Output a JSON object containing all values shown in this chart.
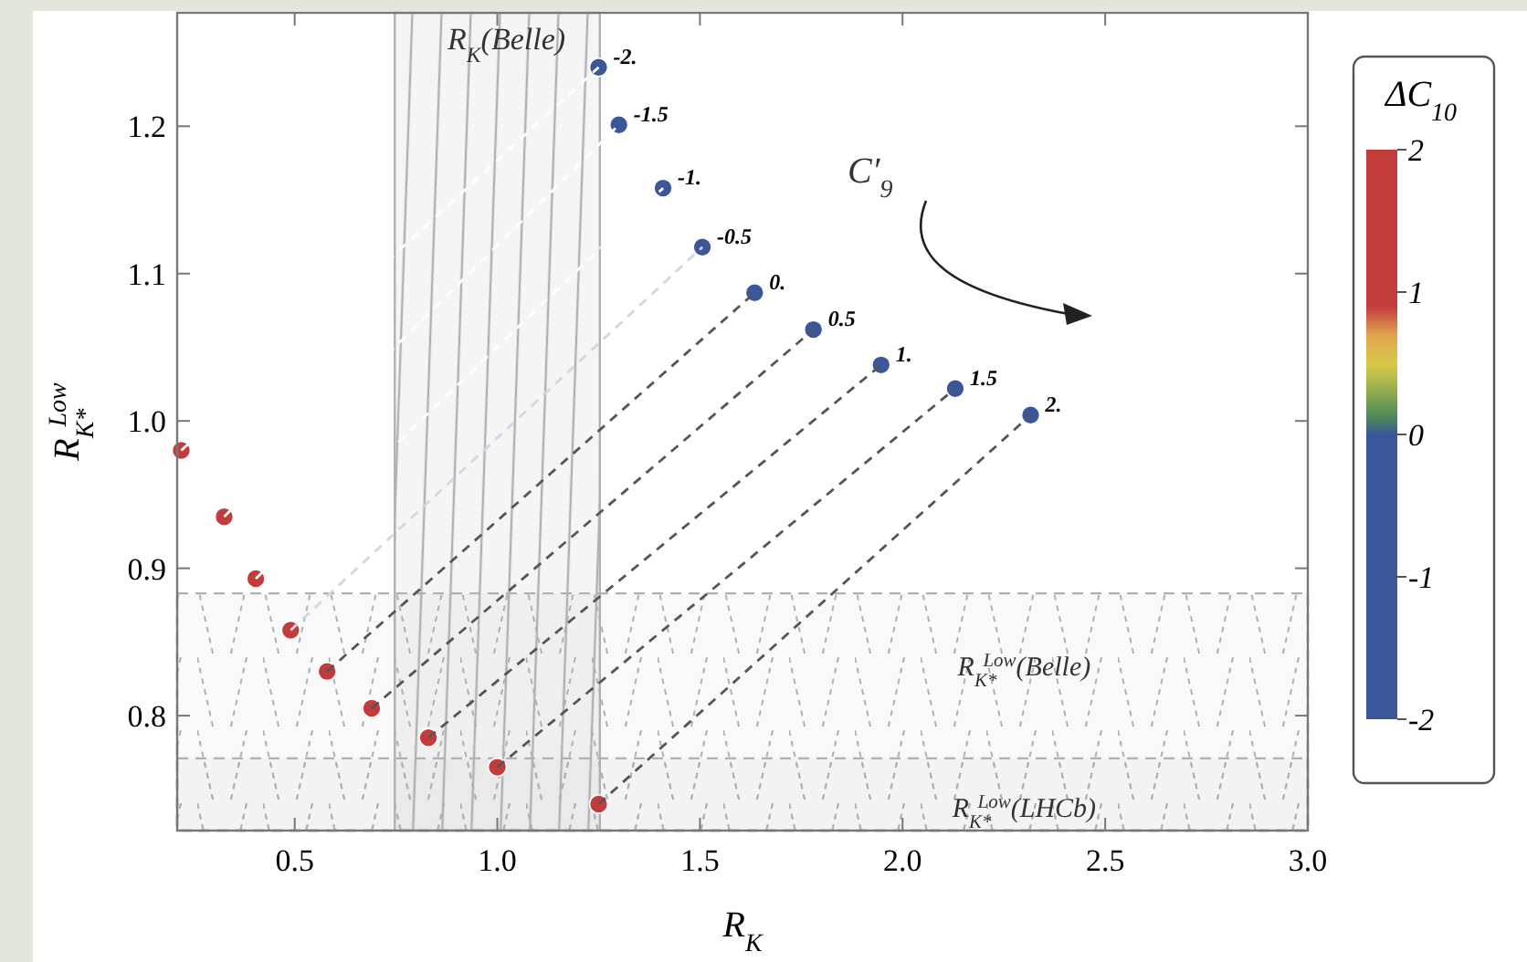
{
  "chart_data": {
    "type": "scatter",
    "xlabel": "R$_{K}$",
    "ylabel": "R$_{K*}$$^{Low}$",
    "clabel": "ΔC$_{10}$",
    "xlim": [
      0.21,
      3.0
    ],
    "xticks": [
      {
        "value": 0.5,
        "label": "0.5"
      },
      {
        "value": 1.0,
        "label": "1.0"
      },
      {
        "value": 1.5,
        "label": "1.5"
      },
      {
        "value": 2.0,
        "label": "2.0"
      },
      {
        "value": 2.5,
        "label": "2.5"
      },
      {
        "value": 3.0,
        "label": "3.0"
      }
    ],
    "ylim": [
      0.722,
      1.277
    ],
    "yticks": [
      {
        "value": 0.8,
        "label": "0.8"
      },
      {
        "value": 0.9,
        "label": "0.9"
      },
      {
        "value": 1.0,
        "label": "1.0"
      },
      {
        "value": 1.1,
        "label": "1.1"
      },
      {
        "value": 1.2,
        "label": "1.2"
      }
    ],
    "clim": [
      -2,
      2
    ],
    "cticks": [
      -2,
      -1,
      0,
      1,
      2
    ],
    "line_style": "dashed",
    "marker": "none",
    "legend": false,
    "grid": false,
    "series": [
      {
        "type": "line",
        "name": "-2.",
        "color": "#ffffff",
        "x": [
          0.22,
          1.25
        ],
        "values": [
          0.98,
          1.24
        ]
      },
      {
        "type": "line",
        "name": "-1.5",
        "color": "#ffffff",
        "x": [
          0.326,
          1.3
        ],
        "values": [
          0.935,
          1.201
        ]
      },
      {
        "type": "line",
        "name": "-1.",
        "color": "#ffffff",
        "x": [
          0.404,
          1.409
        ],
        "values": [
          0.893,
          1.158
        ]
      },
      {
        "type": "line",
        "name": "-0.5",
        "color": "#cfd6e4",
        "x": [
          0.49,
          1.506
        ],
        "values": [
          0.858,
          1.118
        ]
      },
      {
        "type": "line",
        "name": "0.",
        "color": "#555555",
        "x": [
          0.58,
          1.635
        ],
        "values": [
          0.83,
          1.087
        ]
      },
      {
        "type": "line",
        "name": "0.5",
        "color": "#555555",
        "x": [
          0.69,
          1.78
        ],
        "values": [
          0.805,
          1.062
        ]
      },
      {
        "type": "line",
        "name": "1.",
        "color": "#555555",
        "x": [
          0.83,
          1.947
        ],
        "values": [
          0.785,
          1.038
        ]
      },
      {
        "type": "line",
        "name": "1.5",
        "color": "#555555",
        "x": [
          1.0,
          2.13
        ],
        "values": [
          0.765,
          1.022
        ]
      },
      {
        "type": "line",
        "name": "2.",
        "color": "#555555",
        "x": [
          1.25,
          2.316
        ],
        "values": [
          0.74,
          1.004
        ]
      },
      {
        "marker": "circle",
        "x": [
          0.22,
          1.25,
          0.326,
          1.3,
          0.404,
          1.409,
          0.49,
          1.506,
          0.58,
          1.635,
          0.69,
          1.78,
          0.83,
          1.947,
          1.0,
          2.13,
          1.25,
          2.316
        ],
        "values": [
          0.98,
          1.24,
          0.935,
          1.201,
          0.893,
          1.158,
          0.858,
          1.118,
          0.83,
          1.087,
          0.805,
          1.062,
          0.785,
          1.038,
          0.765,
          1.022,
          0.74,
          1.004
        ],
        "colors": [
          "#c33c3c",
          "#3b5699",
          "#c33c3c",
          "#3b5699",
          "#c33c3c",
          "#3b5699",
          "#c33c3c",
          "#3b5699",
          "#c33c3c",
          "#3b5699",
          "#c33c3c",
          "#3b5699",
          "#c33c3c",
          "#3b5699",
          "#c33c3c",
          "#3b5699",
          "#c33c3c",
          "#3b5699"
        ]
      }
    ],
    "bands": [
      {
        "axis": "x",
        "from": 0.747,
        "to": 1.253,
        "label": "R$_{K}$(Belle)",
        "color": "#b0b0b0"
      },
      {
        "axis": "y",
        "from": 0.722,
        "to": 0.883,
        "label": "R$_{K*}$$^{Low}$(Belle)",
        "color": "#b0b0b0"
      },
      {
        "axis": "y",
        "from": 0.722,
        "to": 0.771,
        "label": "R$_{K*}$$^{Low}$(LHCb)",
        "color": "#b0b0b0"
      }
    ],
    "annotations": [
      "C′$_{9}$"
    ]
  }
}
